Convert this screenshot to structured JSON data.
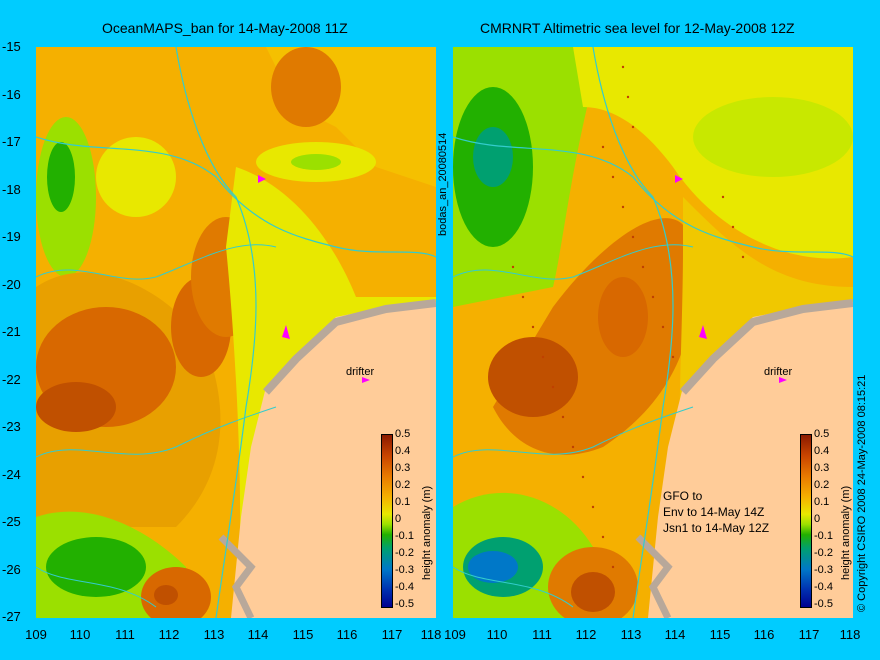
{
  "panels": [
    {
      "title": "OceanMAPS_ban for 14-May-2008 11Z"
    },
    {
      "title": "CMRNRT Altimetric sea level  for 12-May-2008 12Z"
    }
  ],
  "yticks": [
    "-15",
    "-16",
    "-17",
    "-18",
    "-19",
    "-20",
    "-21",
    "-22",
    "-23",
    "-24",
    "-25",
    "-26",
    "-27"
  ],
  "xticks": [
    "109",
    "110",
    "111",
    "112",
    "113",
    "114",
    "115",
    "116",
    "117",
    "118"
  ],
  "side_label": "bodas_an_20080514",
  "copyright": "© Copyright CSIRO 2008   24-May-2008 08:15:21",
  "drifter_label": "drifter",
  "colorbar": {
    "ticks": [
      "0.5",
      "0.4",
      "0.3",
      "0.2",
      "0.1",
      "0",
      "-0.1",
      "-0.2",
      "-0.3",
      "-0.4",
      "-0.5"
    ],
    "title": "height anomaly (m)"
  },
  "notes": [
    "GFO to",
    "Env to 14-May 14Z",
    "Jsn1 to 14-May 12Z"
  ],
  "colors": {
    "background": "#00CCFF",
    "land": "#FFCC99",
    "coast": "#B8A89A",
    "contour": "#33CCCC",
    "drifter": "#FF00FF"
  }
}
